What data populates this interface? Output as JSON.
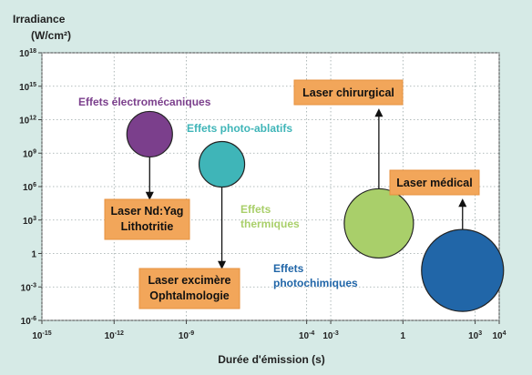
{
  "chart_data": {
    "type": "scatter",
    "title": "",
    "ylabel_line1": "Irradiance",
    "ylabel_line2": "(W/cm²)",
    "xlabel": "Durée d'émission (s)",
    "x_scale": "log",
    "y_scale": "log",
    "xlim": [
      1e-15,
      10000
    ],
    "ylim": [
      1e-06,
      1e+18
    ],
    "grid": true,
    "x_ticks": [
      {
        "value": 1e-15,
        "base": "10",
        "exp": "-15"
      },
      {
        "value": 1e-12,
        "base": "10",
        "exp": "-12"
      },
      {
        "value": 1e-09,
        "base": "10",
        "exp": "-9"
      },
      {
        "value": 0.0001,
        "base": "10",
        "exp": "-4"
      },
      {
        "value": 0.001,
        "base": "10",
        "exp": "-3"
      },
      {
        "value": 1,
        "base": "1",
        "exp": ""
      },
      {
        "value": 1000,
        "base": "10",
        "exp": "3"
      },
      {
        "value": 10000,
        "base": "10",
        "exp": "4"
      }
    ],
    "y_ticks": [
      {
        "value": 1e-06,
        "base": "10",
        "exp": "-6"
      },
      {
        "value": 0.001,
        "base": "10",
        "exp": "-3"
      },
      {
        "value": 1,
        "base": "1",
        "exp": ""
      },
      {
        "value": 1000,
        "base": "10",
        "exp": "3"
      },
      {
        "value": 1000000.0,
        "base": "10",
        "exp": "6"
      },
      {
        "value": 1000000000.0,
        "base": "10",
        "exp": "9"
      },
      {
        "value": 1000000000000.0,
        "base": "10",
        "exp": "12"
      },
      {
        "value": 1000000000000000.0,
        "base": "10",
        "exp": "15"
      },
      {
        "value": 1e+18,
        "base": "10",
        "exp": "18"
      }
    ],
    "bubbles": [
      {
        "label": "Effets électromécaniques",
        "x": 3e-11,
        "y": 50000000000.0,
        "color": "#7b3f8c",
        "label_color": "#7b3f8c"
      },
      {
        "label": "Effets photo-ablatifs",
        "x": 3e-08,
        "y": 100000000.0,
        "color": "#3fb5b8",
        "label_color": "#3fb5b8"
      },
      {
        "label": "Effets thermiques",
        "x": 0.1,
        "y": 500,
        "color": "#a9cf6a",
        "label_color": "#a9cf6a"
      },
      {
        "label": "Effets photochimiques",
        "x": 300,
        "y": 0.03,
        "color": "#2166a8",
        "label_color": "#2166a8"
      }
    ],
    "annotations": [
      {
        "lines": [
          "Laser Nd:Yag",
          "Lithotritie"
        ],
        "from": "Effets électromécaniques"
      },
      {
        "lines": [
          "Laser excimère",
          "Ophtalmologie"
        ],
        "from": "Effets photo-ablatifs"
      },
      {
        "lines": [
          "Laser chirurgical"
        ],
        "from": "Effets thermiques"
      },
      {
        "lines": [
          "Laser médical"
        ],
        "from": "Effets photochimiques"
      }
    ],
    "colors": {
      "background": "#d6eae6",
      "plot_bg": "#ffffff",
      "grid": "#9aa7a7",
      "box_fill": "#f2a65a",
      "box_stroke": "#e7923f"
    }
  }
}
